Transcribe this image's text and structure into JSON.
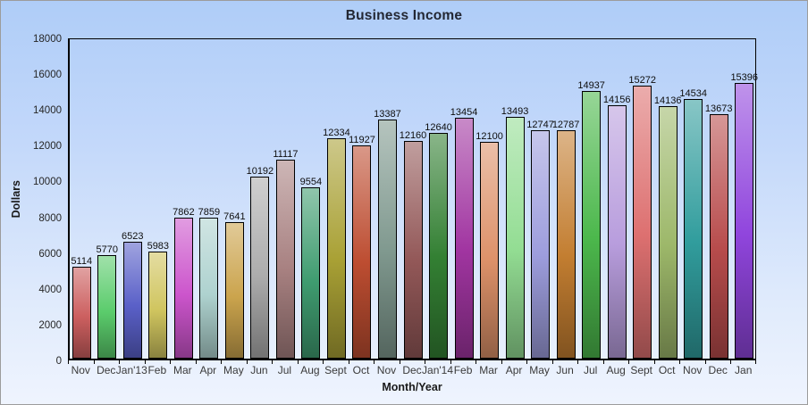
{
  "chart_data": {
    "type": "bar",
    "title": "Business Income",
    "xlabel": "Month/Year",
    "ylabel": "Dollars",
    "ylim": [
      0,
      18000
    ],
    "ytick_step": 2000,
    "grid": false,
    "legend": "none",
    "background_gradient_top": "#afcdf8",
    "background_gradient_bottom": "#eff4fe",
    "bar_border_color": "#000000",
    "categories": [
      "Nov",
      "Dec",
      "Jan'13",
      "Feb",
      "Mar",
      "Apr",
      "May",
      "Jun",
      "Jul",
      "Aug",
      "Sept",
      "Oct",
      "Nov",
      "Dec",
      "Jan'14",
      "Feb",
      "Mar",
      "Apr",
      "May",
      "Jun",
      "Jul",
      "Aug",
      "Sept",
      "Oct",
      "Nov",
      "Dec",
      "Jan"
    ],
    "values": [
      5114,
      5770,
      6523,
      5983,
      7862,
      7859,
      7641,
      10192,
      11117,
      9554,
      12334,
      11927,
      13387,
      12160,
      12640,
      13454,
      12100,
      13493,
      12747,
      12787,
      14937,
      14156,
      15272,
      14136,
      14534,
      13673,
      15396
    ],
    "bar_colors": [
      "#cc5f5f",
      "#5bcc6c",
      "#5a60c8",
      "#d0c55f",
      "#cc55cc",
      "#aed2cf",
      "#cba44d",
      "#acacac",
      "#a88181",
      "#3f9c70",
      "#a9a135",
      "#bd4d31",
      "#80998f",
      "#935858",
      "#338033",
      "#a135a1",
      "#dd9169",
      "#93dd93",
      "#9d9ddd",
      "#c37e31",
      "#4cb84c",
      "#b89ddd",
      "#dd7070",
      "#9db86a",
      "#319d9d",
      "#b84c4c",
      "#9045dd"
    ]
  }
}
